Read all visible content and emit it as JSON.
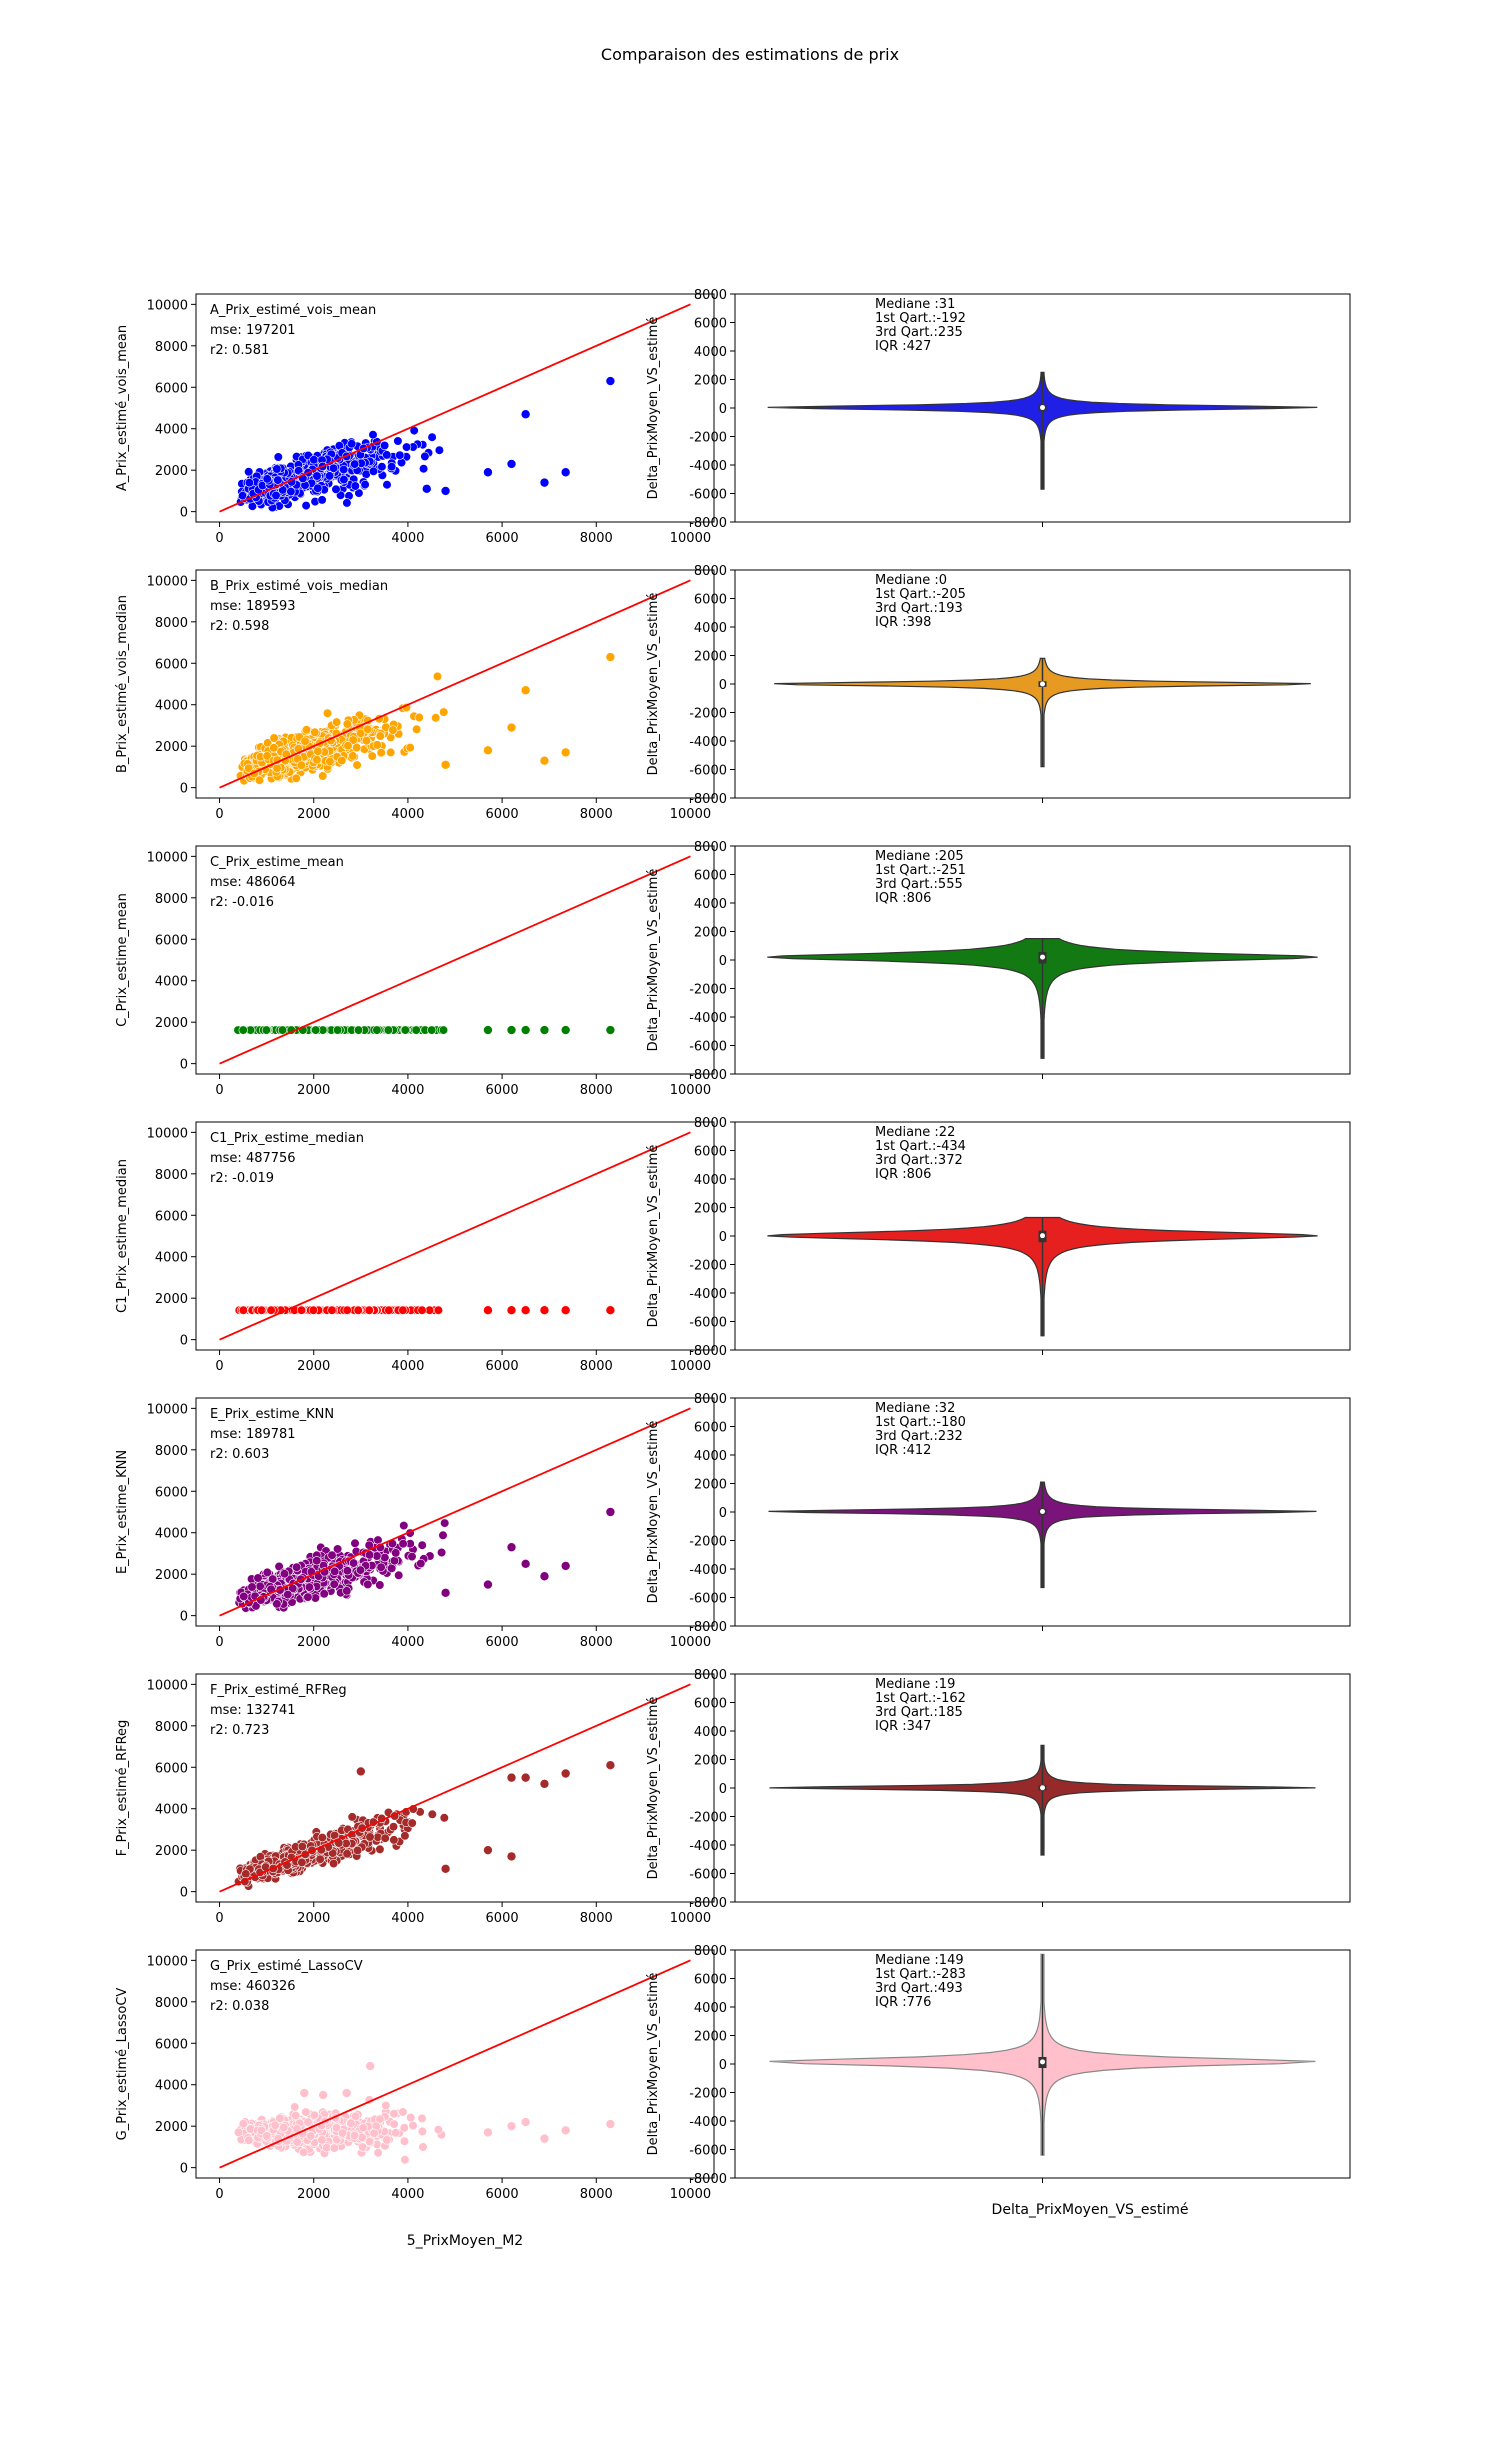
{
  "title": "Comparaison des estimations de prix",
  "scatter_xlabel": "5_PrixMoyen_M2",
  "violin_ylabel": "Delta_PrixMoyen_VS_estimé",
  "violin_xlabel": "Delta_PrixMoyen_VS_estimé",
  "stat_labels": {
    "median": "Mediane  :",
    "q1": "1st Qart.:",
    "q3": "3rd Qart.:",
    "iqr": "IQR      :"
  },
  "chart_data": [
    {
      "type": "scatter",
      "name": "A_Prix_estimé_vois_mean",
      "ylabel": "A_Prix_estimé_vois_mean",
      "color": "#0000ff",
      "mse": "mse: 197201",
      "r2": "r2: 0.581",
      "xlim": [
        -500,
        10500
      ],
      "ylim": [
        -500,
        10500
      ],
      "xticks": [
        0,
        2000,
        4000,
        6000,
        8000,
        10000
      ],
      "yticks": [
        0,
        2000,
        4000,
        6000,
        8000,
        10000
      ],
      "reference_line": [
        [
          0,
          0
        ],
        [
          10000,
          10000
        ]
      ],
      "model": {
        "slope": 0.58,
        "intercept": 680,
        "noise": 520,
        "flat": false
      },
      "outliers": [
        [
          8300,
          6300
        ],
        [
          6500,
          4700
        ],
        [
          6200,
          2300
        ],
        [
          5700,
          1900
        ],
        [
          6900,
          1400
        ],
        [
          7350,
          1900
        ],
        [
          4800,
          1000
        ],
        [
          4400,
          1100
        ]
      ],
      "violin": {
        "median": "31",
        "q1": "-192",
        "q3": "235",
        "iqr": "427",
        "median_value": 31,
        "q1_value": -192,
        "q3_value": 235,
        "min": -5700,
        "max": 2500,
        "ylim": [
          -8000,
          8000
        ],
        "yticks": [
          -8000,
          -6000,
          -4000,
          -2000,
          0,
          2000,
          4000,
          6000,
          8000
        ],
        "color": "#1f1fe6"
      }
    },
    {
      "type": "scatter",
      "name": "B_Prix_estimé_vois_median",
      "ylabel": "B_Prix_estimé_vois_median",
      "color": "#ffa500",
      "mse": "mse: 189593",
      "r2": "r2: 0.598",
      "xlim": [
        -500,
        10500
      ],
      "ylim": [
        -500,
        10500
      ],
      "xticks": [
        0,
        2000,
        4000,
        6000,
        8000,
        10000
      ],
      "yticks": [
        0,
        2000,
        4000,
        6000,
        8000,
        10000
      ],
      "reference_line": [
        [
          0,
          0
        ],
        [
          10000,
          10000
        ]
      ],
      "model": {
        "slope": 0.6,
        "intercept": 600,
        "noise": 480,
        "flat": false
      },
      "outliers": [
        [
          8300,
          6300
        ],
        [
          6500,
          4700
        ],
        [
          6200,
          2900
        ],
        [
          5700,
          1800
        ],
        [
          6900,
          1300
        ],
        [
          7350,
          1700
        ],
        [
          4800,
          1100
        ]
      ],
      "violin": {
        "median": "0",
        "q1": "-205",
        "q3": "193",
        "iqr": "398",
        "median_value": 0,
        "q1_value": -205,
        "q3_value": 193,
        "min": -5800,
        "max": 1800,
        "ylim": [
          -8000,
          8000
        ],
        "yticks": [
          -8000,
          -6000,
          -4000,
          -2000,
          0,
          2000,
          4000,
          6000,
          8000
        ],
        "color": "#e69a22"
      }
    },
    {
      "type": "scatter",
      "name": "C_Prix_estime_mean",
      "ylabel": "C_Prix_estime_mean",
      "color": "#008000",
      "mse": "mse: 486064",
      "r2": "r2: -0.016",
      "xlim": [
        -500,
        10500
      ],
      "ylim": [
        -500,
        10500
      ],
      "xticks": [
        0,
        2000,
        4000,
        6000,
        8000,
        10000
      ],
      "yticks": [
        0,
        2000,
        4000,
        6000,
        8000,
        10000
      ],
      "reference_line": [
        [
          0,
          0
        ],
        [
          10000,
          10000
        ]
      ],
      "model": {
        "slope": 0,
        "intercept": 1620,
        "noise": 0,
        "flat": true
      },
      "outliers": [
        [
          8300,
          1620
        ],
        [
          7350,
          1620
        ],
        [
          6900,
          1620
        ],
        [
          6500,
          1620
        ],
        [
          6200,
          1620
        ],
        [
          5700,
          1620
        ]
      ],
      "violin": {
        "median": "205",
        "q1": "-251",
        "q3": "555",
        "iqr": "806",
        "median_value": 205,
        "q1_value": -251,
        "q3_value": 555,
        "min": -6900,
        "max": 1500,
        "ylim": [
          -8000,
          8000
        ],
        "yticks": [
          -8000,
          -6000,
          -4000,
          -2000,
          0,
          2000,
          4000,
          6000,
          8000
        ],
        "color": "#137a13"
      }
    },
    {
      "type": "scatter",
      "name": "C1_Prix_estime_median",
      "ylabel": "C1_Prix_estime_median",
      "color": "#ff0000",
      "mse": "mse: 487756",
      "r2": "r2: -0.019",
      "xlim": [
        -500,
        10500
      ],
      "ylim": [
        -500,
        10500
      ],
      "xticks": [
        0,
        2000,
        4000,
        6000,
        8000,
        10000
      ],
      "yticks": [
        0,
        2000,
        4000,
        6000,
        8000,
        10000
      ],
      "reference_line": [
        [
          0,
          0
        ],
        [
          10000,
          10000
        ]
      ],
      "model": {
        "slope": 0,
        "intercept": 1420,
        "noise": 0,
        "flat": true
      },
      "outliers": [
        [
          8300,
          1420
        ],
        [
          7350,
          1420
        ],
        [
          6900,
          1420
        ],
        [
          6500,
          1420
        ],
        [
          6200,
          1420
        ],
        [
          5700,
          1420
        ]
      ],
      "violin": {
        "median": "22",
        "q1": "-434",
        "q3": "372",
        "iqr": "806",
        "median_value": 22,
        "q1_value": -434,
        "q3_value": 372,
        "min": -7000,
        "max": 1300,
        "ylim": [
          -8000,
          8000
        ],
        "yticks": [
          -8000,
          -6000,
          -4000,
          -2000,
          0,
          2000,
          4000,
          6000,
          8000
        ],
        "color": "#e61f1f"
      }
    },
    {
      "type": "scatter",
      "name": "E_Prix_estime_KNN",
      "ylabel": "E_Prix_estime_KNN",
      "color": "#800080",
      "mse": "mse: 189781",
      "r2": "r2: 0.603",
      "xlim": [
        -500,
        10500
      ],
      "ylim": [
        -500,
        10500
      ],
      "xticks": [
        0,
        2000,
        4000,
        6000,
        8000,
        10000
      ],
      "yticks": [
        0,
        2000,
        4000,
        6000,
        8000,
        10000
      ],
      "reference_line": [
        [
          0,
          0
        ],
        [
          10000,
          10000
        ]
      ],
      "model": {
        "slope": 0.58,
        "intercept": 650,
        "noise": 470,
        "flat": false
      },
      "outliers": [
        [
          8300,
          5000
        ],
        [
          6200,
          3300
        ],
        [
          6500,
          2500
        ],
        [
          5700,
          1500
        ],
        [
          6900,
          1900
        ],
        [
          7350,
          2400
        ],
        [
          4800,
          1100
        ]
      ],
      "violin": {
        "median": "32",
        "q1": "-180",
        "q3": "232",
        "iqr": "412",
        "median_value": 32,
        "q1_value": -180,
        "q3_value": 232,
        "min": -5300,
        "max": 2100,
        "ylim": [
          -8000,
          8000
        ],
        "yticks": [
          -8000,
          -6000,
          -4000,
          -2000,
          0,
          2000,
          4000,
          6000,
          8000
        ],
        "color": "#7a137a"
      }
    },
    {
      "type": "scatter",
      "name": "F_Prix_estimé_RFReg",
      "ylabel": "F_Prix_estimé_RFReg",
      "color": "#a52a2a",
      "mse": "mse: 132741",
      "r2": "r2: 0.723",
      "xlim": [
        -500,
        10500
      ],
      "ylim": [
        -500,
        10500
      ],
      "xticks": [
        0,
        2000,
        4000,
        6000,
        8000,
        10000
      ],
      "yticks": [
        0,
        2000,
        4000,
        6000,
        8000,
        10000
      ],
      "reference_line": [
        [
          0,
          0
        ],
        [
          10000,
          10000
        ]
      ],
      "model": {
        "slope": 0.72,
        "intercept": 420,
        "noise": 380,
        "flat": false
      },
      "outliers": [
        [
          8300,
          6100
        ],
        [
          7350,
          5700
        ],
        [
          6900,
          5200
        ],
        [
          6200,
          5500
        ],
        [
          6500,
          5500
        ],
        [
          5700,
          2000
        ],
        [
          6200,
          1700
        ],
        [
          4800,
          1100
        ],
        [
          3000,
          5800
        ]
      ],
      "violin": {
        "median": "19",
        "q1": "-162",
        "q3": "185",
        "iqr": "347",
        "median_value": 19,
        "q1_value": -162,
        "q3_value": 185,
        "min": -4700,
        "max": 3000,
        "ylim": [
          -8000,
          8000
        ],
        "yticks": [
          -8000,
          -6000,
          -4000,
          -2000,
          0,
          2000,
          4000,
          6000,
          8000
        ],
        "color": "#962a2a"
      }
    },
    {
      "type": "scatter",
      "name": "G_Prix_estimé_LassoCV",
      "ylabel": "G_Prix_estimé_LassoCV",
      "color": "#ffc0cb",
      "mse": "mse: 460326",
      "r2": "r2: 0.038",
      "xlim": [
        -500,
        10500
      ],
      "ylim": [
        -500,
        10500
      ],
      "xticks": [
        0,
        2000,
        4000,
        6000,
        8000,
        10000
      ],
      "yticks": [
        0,
        2000,
        4000,
        6000,
        8000,
        10000
      ],
      "reference_line": [
        [
          0,
          0
        ],
        [
          10000,
          10000
        ]
      ],
      "model": {
        "slope": 0.06,
        "intercept": 1650,
        "noise": 380,
        "flat": false
      },
      "outliers": [
        [
          8300,
          2100
        ],
        [
          7350,
          1800
        ],
        [
          6900,
          1400
        ],
        [
          6200,
          2000
        ],
        [
          6500,
          2200
        ],
        [
          5700,
          1700
        ],
        [
          3200,
          4900
        ],
        [
          2700,
          3600
        ],
        [
          1800,
          3600
        ],
        [
          2200,
          3500
        ]
      ],
      "violin": {
        "median": "149",
        "q1": "-283",
        "q3": "493",
        "iqr": "776",
        "median_value": 149,
        "q1_value": -283,
        "q3_value": 493,
        "min": -6400,
        "max": 7700,
        "ylim": [
          -8000,
          8000
        ],
        "yticks": [
          -8000,
          -6000,
          -4000,
          -2000,
          0,
          2000,
          4000,
          6000,
          8000
        ],
        "color": "#ffc0cb"
      }
    }
  ]
}
